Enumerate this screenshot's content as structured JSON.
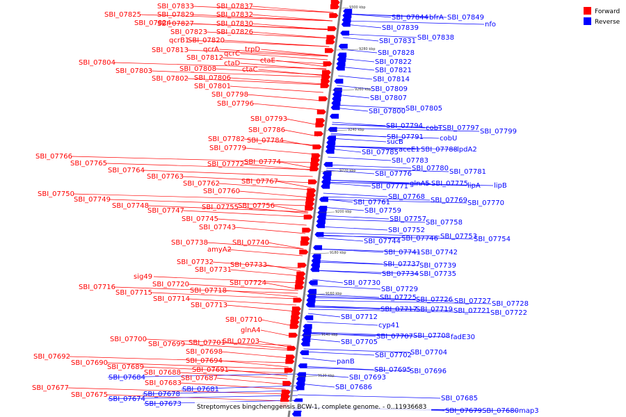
{
  "colors": {
    "forward": "#ff0000",
    "reverse": "#0000ff",
    "axis": "#808080"
  },
  "legend": {
    "forward": "Forward",
    "reverse": "Reverse"
  },
  "title": "Streptomyces bingchenggensis BCW-1, complete genome. - 0..11936683",
  "ticks": [
    "9300 kbp",
    "9280 kbp",
    "9260 kbp",
    "9240 kbp",
    "9220 kbp",
    "9200 kbp",
    "9180 kbp",
    "9160 kbp",
    "9140 kbp",
    "9120 kbp"
  ],
  "forward_labels": [
    "SBI_07837",
    "SBI_07833",
    "SBI_07832",
    "SBI_07829",
    "SBI_07825",
    "SBI_07830",
    "SBI_07827",
    "SBI_07824",
    "SBI_07826",
    "SBI_07823",
    "SBI_07820",
    "qcrB1",
    "trpD",
    "qcrA",
    "SBI_07813",
    "qcrC",
    "ctaE",
    "SBI_07812",
    "ctaD",
    "SBI_07804",
    "ctaC",
    "SBI_07808",
    "SBI_07803",
    "SBI_07806",
    "SBI_07802",
    "SBI_07801",
    "SBI_07798",
    "SBI_07796",
    "SBI_07793",
    "SBI_07786",
    "SBI_07784",
    "SBI_07782",
    "SBI_07779",
    "SBI_07774",
    "SBI_07772",
    "SBI_07766",
    "SBI_07765",
    "SBI_07764",
    "SBI_07763",
    "SBI_07767",
    "SBI_07762",
    "SBI_07760",
    "SBI_07750",
    "SBI_07749",
    "SBI_07748",
    "SBI_07756",
    "SBI_07755",
    "SBI_07747",
    "SBI_07745",
    "SBI_07743",
    "SBI_07740",
    "SBI_07738",
    "amyA2",
    "SBI_07733",
    "SBI_07732",
    "SBI_07731",
    "sig49",
    "SBI_07724",
    "SBI_07720",
    "SBI_07716",
    "SBI_07718",
    "SBI_07715",
    "SBI_07714",
    "SBI_07713",
    "SBI_07710",
    "glnA4",
    "SBI_07703",
    "SBI_07700",
    "SBI_07701",
    "SBI_07699",
    "SBI_07698",
    "SBI_07692",
    "SBI_07694",
    "SBI_07690",
    "SBI_07691",
    "SBI_07689",
    "SBI_07688",
    "SBI_07687",
    "SBI_07683",
    "SBI_07677",
    "SBI_07675"
  ],
  "reverse_labels": [
    "SBI_07844",
    "bfrA",
    "SBI_07849",
    "nfo",
    "SBI_07839",
    "SBI_07838",
    "SBI_07831",
    "SBI_07828",
    "SBI_07822",
    "SBI_07821",
    "SBI_07814",
    "SBI_07809",
    "SBI_07807",
    "SBI_07805",
    "SBI_07800",
    "SBI_07794",
    "cobT",
    "SBI_07797",
    "SBI_07799",
    "SBI_07791",
    "cobU",
    "sucB",
    "aceE1",
    "SBI_07788",
    "lpdA2",
    "SBI_07785",
    "SBI_07783",
    "SBI_07780",
    "SBI_07781",
    "SBI_07776",
    "glnA5",
    "SBI_07775",
    "lipA",
    "lipB",
    "SBI_07771",
    "SBI_07768",
    "SBI_07769",
    "SBI_07770",
    "SBI_07761",
    "SBI_07759",
    "SBI_07757",
    "SBI_07758",
    "SBI_07752",
    "SBI_07753",
    "SBI_07746",
    "SBI_07754",
    "SBI_07744",
    "SBI_07741",
    "SBI_07742",
    "SBI_07737",
    "SBI_07739",
    "SBI_07734",
    "SBI_07735",
    "SBI_07730",
    "SBI_07729",
    "SBI_07725",
    "SBI_07726",
    "SBI_07727",
    "SBI_07728",
    "SBI_07717",
    "SBI_07719",
    "SBI_07721",
    "SBI_07722",
    "SBI_07712",
    "cyp41",
    "SBI_07707",
    "SBI_07708",
    "fadE30",
    "SBI_07705",
    "SBI_07702",
    "SBI_07704",
    "panB",
    "SBI_07695",
    "SBI_07696",
    "SBI_07693",
    "SBI_07686",
    "SBI_07684",
    "SBI_07681",
    "SBI_07678",
    "SBI_07685",
    "SBI_07674",
    "SBI_07673",
    "SBI_07679",
    "SBI_07680",
    "map3"
  ]
}
